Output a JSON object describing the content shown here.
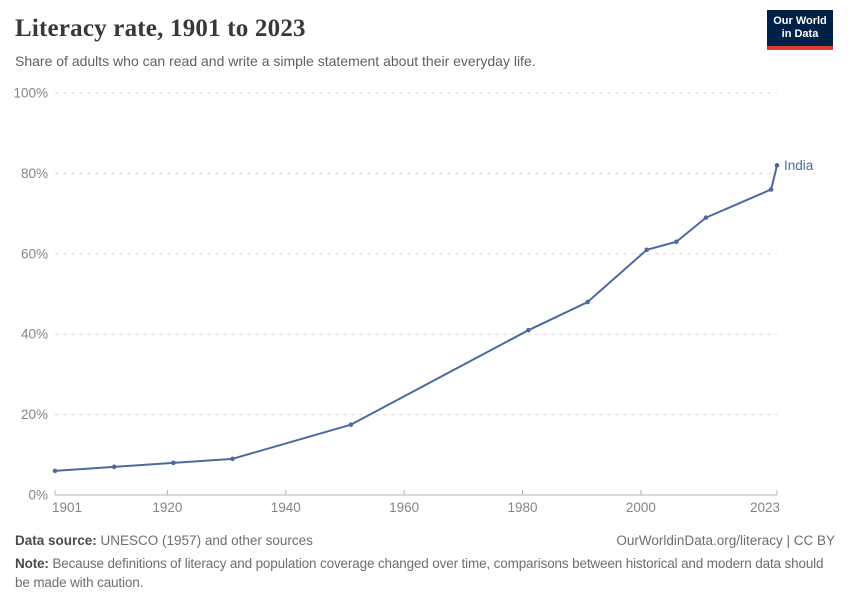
{
  "header": {
    "title": "Literacy rate, 1901 to 2023",
    "subtitle": "Share of adults who can read and write a simple statement about their everyday life.",
    "logo": {
      "line1": "Our World",
      "line2": "in Data",
      "bg_color": "#002147",
      "accent_color": "#dc3c2e"
    }
  },
  "chart_data": {
    "type": "line",
    "title": "Literacy rate, 1901 to 2023",
    "xlabel": "",
    "ylabel": "",
    "xlim": [
      1901,
      2023
    ],
    "ylim": [
      0,
      100
    ],
    "grid": "horizontal-dashed",
    "legend_position": "end-of-line-label",
    "x_ticks": [
      {
        "value": 1901,
        "label": "1901"
      },
      {
        "value": 1920,
        "label": "1920"
      },
      {
        "value": 1940,
        "label": "1940"
      },
      {
        "value": 1960,
        "label": "1960"
      },
      {
        "value": 1980,
        "label": "1980"
      },
      {
        "value": 2000,
        "label": "2000"
      },
      {
        "value": 2023,
        "label": "2023"
      }
    ],
    "y_ticks": [
      {
        "value": 0,
        "label": "0%"
      },
      {
        "value": 20,
        "label": "20%"
      },
      {
        "value": 40,
        "label": "40%"
      },
      {
        "value": 60,
        "label": "60%"
      },
      {
        "value": 80,
        "label": "80%"
      },
      {
        "value": 100,
        "label": "100%"
      }
    ],
    "series": [
      {
        "name": "India",
        "color": "#4c6a9c",
        "points": [
          [
            1901,
            6
          ],
          [
            1911,
            7
          ],
          [
            1921,
            8
          ],
          [
            1931,
            9
          ],
          [
            1951,
            17.5
          ],
          [
            1981,
            41
          ],
          [
            1991,
            48
          ],
          [
            2001,
            61
          ],
          [
            2006,
            63
          ],
          [
            2011,
            69
          ],
          [
            2022,
            76
          ],
          [
            2023,
            82
          ]
        ]
      }
    ]
  },
  "footer": {
    "source_label": "Data source:",
    "source_text": " UNESCO (1957) and other sources",
    "attribution": "OurWorldinData.org/literacy | CC BY",
    "note_label": "Note:",
    "note_text": " Because definitions of literacy and population coverage changed over time, comparisons between historical and modern data should be made with caution."
  },
  "colors": {
    "series_blue": "#4c6a9c",
    "grid": "#dadada",
    "axis": "#b5b5b5",
    "tick_label": "#858585",
    "title": "#383838",
    "subtitle": "#606060",
    "footer_text": "#6e6e6e",
    "footer_label": "#4a4a4a"
  }
}
